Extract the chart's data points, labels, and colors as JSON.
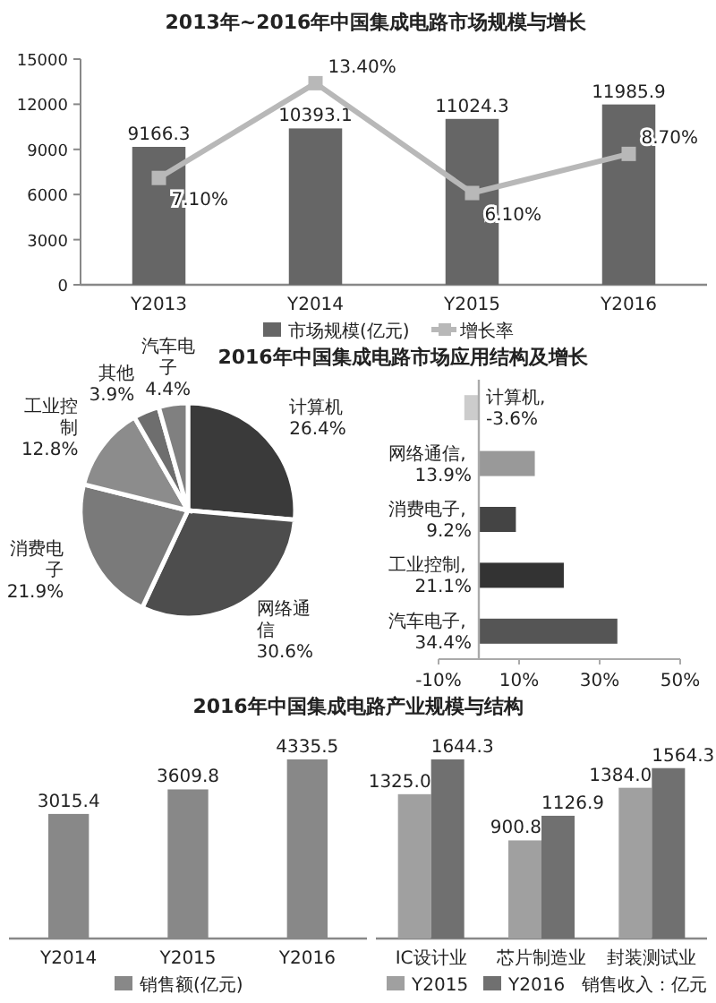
{
  "chart_data": [
    {
      "type": "bar",
      "title": "2013年~2016年中国集成电路市场规模与增长",
      "categories": [
        "Y2013",
        "Y2014",
        "Y2015",
        "Y2016"
      ],
      "ylim": [
        0,
        15000
      ],
      "yticks": [
        0,
        3000,
        6000,
        9000,
        12000,
        15000
      ],
      "y2lim": [
        0,
        15
      ],
      "legend": "bottom",
      "series": [
        {
          "name": "市场规模(亿元)",
          "type": "bar",
          "color": "#666666",
          "values": [
            9166.3,
            10393.1,
            11024.3,
            11985.9
          ],
          "value_labels": [
            "9166.3",
            "10393.1",
            "11024.3",
            "11985.9"
          ]
        },
        {
          "name": "增长率",
          "type": "line",
          "axis": "y2",
          "color": "#b8b8b8",
          "marker": "square",
          "values": [
            7.1,
            13.4,
            6.1,
            8.7
          ],
          "value_labels": [
            "7.10%",
            "13.40%",
            "6.10%",
            "8.70%"
          ]
        }
      ]
    },
    {
      "type": "pie",
      "title": "2016年中国集成电路市场应用结构及增长",
      "categories": [
        "计算机",
        "网络通信",
        "消费电子",
        "工业控制",
        "其他",
        "汽车电子"
      ],
      "values": [
        26.4,
        30.6,
        21.9,
        12.8,
        3.9,
        4.4
      ],
      "colors": [
        "#3a3a3a",
        "#4d4d4d",
        "#7a7a7a",
        "#8c8c8c",
        "#6e6e6e",
        "#808080"
      ],
      "value_labels": [
        "26.4%",
        "30.6%",
        "21.9%",
        "12.8%",
        "3.9%",
        "4.4%"
      ]
    },
    {
      "type": "bar",
      "orientation": "horizontal",
      "categories": [
        null,
        null,
        null,
        null,
        null
      ],
      "values": [
        -3.6,
        13.9,
        9.2,
        21.1,
        34.4
      ],
      "colors": [
        "#cccccc",
        "#999999",
        "#444444",
        "#333333",
        "#555555"
      ],
      "value_labels": [
        "计算机, -3.6%",
        "网络通信, 13.9%",
        "消费电子, 9.2%",
        "工业控制, 21.1%",
        "汽车电子, 34.4%"
      ],
      "xlim": [
        -10,
        50
      ],
      "xticks": [
        {
          "value": -10,
          "label": "-10%"
        },
        {
          "value": 10,
          "label": "10%"
        },
        {
          "value": 30,
          "label": "30%"
        },
        {
          "value": 50,
          "label": "50%"
        }
      ],
      "tick_labels": "x"
    },
    {
      "type": "bar",
      "title": "2016年中国集成电路产业规模与结构",
      "categories": [
        "Y2014",
        "Y2015",
        "Y2016"
      ],
      "legend": "bottom",
      "series": [
        {
          "name": "销售额(亿元)",
          "color": "#888888",
          "values": [
            3015.4,
            3609.8,
            4335.5
          ],
          "value_labels": [
            "3015.4",
            "3609.8",
            "4335.5"
          ]
        }
      ]
    },
    {
      "type": "bar",
      "categories": [
        "IC设计业",
        "芯片制造业",
        "封装测试业"
      ],
      "legend": "bottom left",
      "annotations": [
        "销售收入：亿元"
      ],
      "series": [
        {
          "name": "Y2015",
          "color": "#a0a0a0",
          "values": [
            1325.0,
            900.8,
            1384.0
          ],
          "value_labels": [
            "1325.0",
            "900.8",
            "1384.0"
          ]
        },
        {
          "name": "Y2016",
          "color": "#707070",
          "values": [
            1644.3,
            1126.9,
            1564.3
          ],
          "value_labels": [
            "1644.3",
            "1126.9",
            "1564.3"
          ]
        }
      ]
    }
  ]
}
